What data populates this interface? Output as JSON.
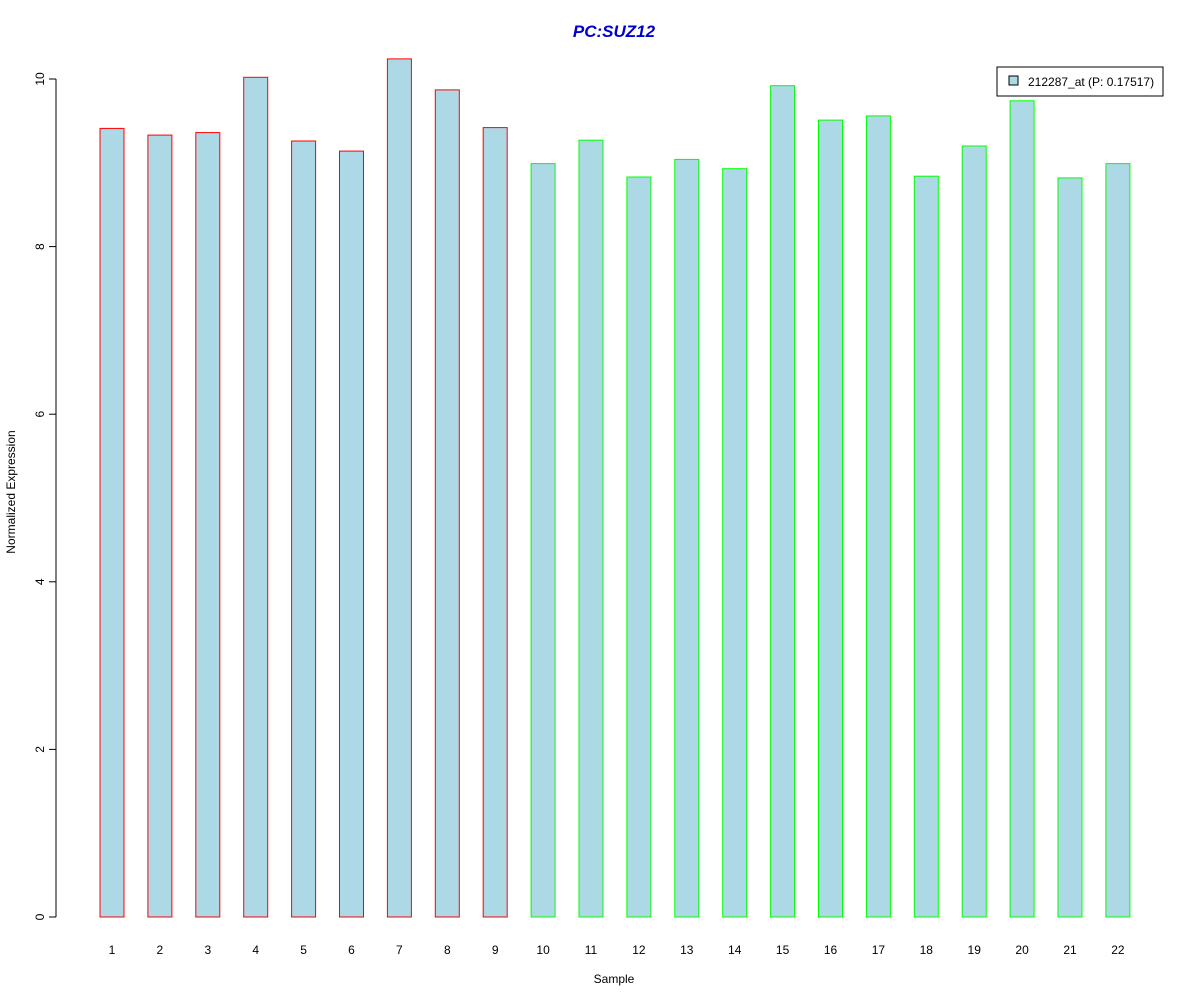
{
  "chart_data": {
    "type": "bar",
    "title": "PC:SUZ12",
    "xlabel": "Sample",
    "ylabel": "Normalized Expression",
    "ylim": [
      0,
      10.25
    ],
    "yticks": [
      0,
      2,
      4,
      6,
      8,
      10
    ],
    "grid": false,
    "legend_position": "top-right",
    "categories": [
      "1",
      "2",
      "3",
      "4",
      "5",
      "6",
      "7",
      "8",
      "9",
      "10",
      "11",
      "12",
      "13",
      "14",
      "15",
      "16",
      "17",
      "18",
      "19",
      "20",
      "21",
      "22"
    ],
    "series": [
      {
        "name": "212287_at (P: 0.17517)",
        "values": [
          9.41,
          9.33,
          9.36,
          10.02,
          9.26,
          9.14,
          10.24,
          9.87,
          9.42,
          8.99,
          9.27,
          8.83,
          9.04,
          8.93,
          9.92,
          9.51,
          9.56,
          8.84,
          9.2,
          9.74,
          8.82,
          8.99
        ]
      }
    ],
    "fill_color": "#add8e6",
    "border_colors": [
      "#ff0000",
      "#ff0000",
      "#ff0000",
      "#ff0000",
      "#ff0000",
      "#ff0000",
      "#ff0000",
      "#ff0000",
      "#ff0000",
      "#00ff00",
      "#00ff00",
      "#00ff00",
      "#00ff00",
      "#00ff00",
      "#00ff00",
      "#00ff00",
      "#00ff00",
      "#00ff00",
      "#00ff00",
      "#00ff00",
      "#00ff00",
      "#00ff00"
    ],
    "title_color": "#0000cc"
  }
}
